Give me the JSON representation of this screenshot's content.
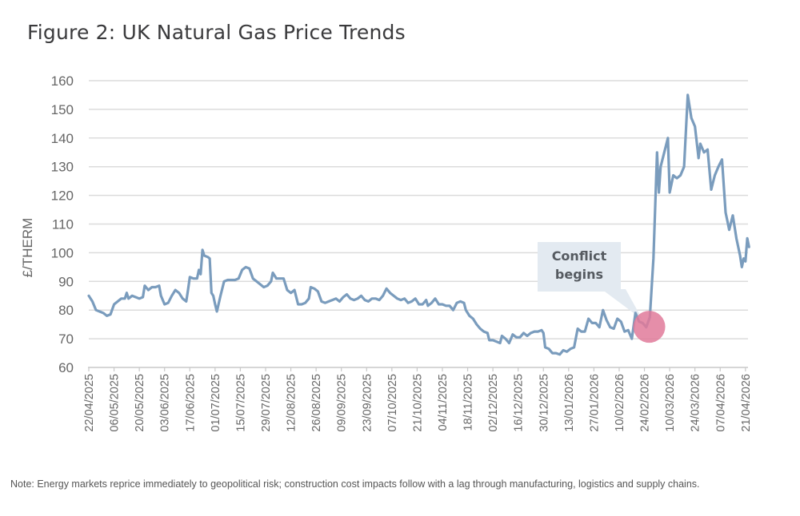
{
  "chart_data": {
    "type": "line",
    "title": "Figure 2: UK Natural Gas Price Trends",
    "xlabel": "",
    "ylabel": "£/THERM",
    "ylim": [
      60,
      160
    ],
    "yticks": [
      60,
      70,
      80,
      90,
      100,
      110,
      120,
      130,
      140,
      150,
      160
    ],
    "grid": true,
    "x_tick_labels": [
      "22/04/2025",
      "06/05/2025",
      "20/05/2025",
      "03/06/2025",
      "17/06/2025",
      "01/07/2025",
      "15/07/2025",
      "29/07/2025",
      "12/08/2025",
      "26/08/2025",
      "09/09/2025",
      "23/09/2025",
      "07/10/2025",
      "21/10/2025",
      "04/11/2025",
      "18/11/2025",
      "02/12/2025",
      "16/12/2025",
      "30/12/2025",
      "13/01/2026",
      "27/01/2026",
      "10/02/2026",
      "24/02/2026",
      "10/03/2026",
      "24/03/2026",
      "07/04/2026",
      "21/04/2026"
    ],
    "series": [
      {
        "name": "UK Natural Gas Price",
        "color": "#7a9cbd",
        "x_unit": "days since 22/04/2025",
        "points": [
          [
            0,
            85
          ],
          [
            2,
            83
          ],
          [
            4,
            80
          ],
          [
            6,
            79.5
          ],
          [
            8,
            79
          ],
          [
            10,
            78
          ],
          [
            12,
            78.5
          ],
          [
            14,
            82
          ],
          [
            16,
            83
          ],
          [
            18,
            84
          ],
          [
            20,
            84
          ],
          [
            21,
            86
          ],
          [
            22,
            84
          ],
          [
            24,
            85
          ],
          [
            26,
            84.5
          ],
          [
            28,
            84
          ],
          [
            30,
            84.5
          ],
          [
            31,
            88.5
          ],
          [
            33,
            87
          ],
          [
            35,
            88
          ],
          [
            37,
            88
          ],
          [
            39,
            88.5
          ],
          [
            40,
            85
          ],
          [
            42,
            82
          ],
          [
            44,
            82.5
          ],
          [
            46,
            85
          ],
          [
            48,
            87
          ],
          [
            50,
            86
          ],
          [
            52,
            84
          ],
          [
            54,
            83
          ],
          [
            55,
            87
          ],
          [
            56,
            91.5
          ],
          [
            58,
            91
          ],
          [
            60,
            91
          ],
          [
            61,
            94
          ],
          [
            62,
            92.5
          ],
          [
            63,
            101
          ],
          [
            64,
            99
          ],
          [
            66,
            98.5
          ],
          [
            67,
            98
          ],
          [
            68,
            86
          ],
          [
            69,
            85
          ],
          [
            70,
            82
          ],
          [
            71,
            79.5
          ],
          [
            73,
            85
          ],
          [
            75,
            90
          ],
          [
            77,
            90.5
          ],
          [
            79,
            90.5
          ],
          [
            81,
            90.5
          ],
          [
            83,
            91
          ],
          [
            85,
            94
          ],
          [
            87,
            95
          ],
          [
            89,
            94.5
          ],
          [
            91,
            91
          ],
          [
            93,
            90
          ],
          [
            95,
            89
          ],
          [
            97,
            88
          ],
          [
            99,
            88.5
          ],
          [
            101,
            90
          ],
          [
            102,
            93
          ],
          [
            104,
            91
          ],
          [
            106,
            91
          ],
          [
            108,
            91
          ],
          [
            110,
            87
          ],
          [
            112,
            86
          ],
          [
            114,
            87
          ],
          [
            116,
            82
          ],
          [
            118,
            82
          ],
          [
            120,
            82.5
          ],
          [
            122,
            84
          ],
          [
            123,
            88
          ],
          [
            125,
            87.5
          ],
          [
            127,
            86.5
          ],
          [
            129,
            83
          ],
          [
            131,
            82.5
          ],
          [
            133,
            83
          ],
          [
            135,
            83.5
          ],
          [
            137,
            84
          ],
          [
            139,
            83
          ],
          [
            141,
            84.5
          ],
          [
            143,
            85.5
          ],
          [
            145,
            84
          ],
          [
            147,
            83.5
          ],
          [
            149,
            84
          ],
          [
            151,
            85
          ],
          [
            153,
            83.5
          ],
          [
            155,
            83
          ],
          [
            157,
            84
          ],
          [
            159,
            84
          ],
          [
            161,
            83.5
          ],
          [
            163,
            85
          ],
          [
            165,
            87.5
          ],
          [
            167,
            86
          ],
          [
            169,
            85
          ],
          [
            171,
            84
          ],
          [
            173,
            83.5
          ],
          [
            175,
            84
          ],
          [
            177,
            82.5
          ],
          [
            179,
            83
          ],
          [
            181,
            84
          ],
          [
            183,
            82
          ],
          [
            185,
            82
          ],
          [
            187,
            83.5
          ],
          [
            188,
            81.5
          ],
          [
            190,
            82.5
          ],
          [
            192,
            84
          ],
          [
            194,
            82
          ],
          [
            196,
            82
          ],
          [
            198,
            81.5
          ],
          [
            200,
            81.5
          ],
          [
            202,
            80
          ],
          [
            204,
            82.5
          ],
          [
            206,
            83
          ],
          [
            208,
            82.5
          ],
          [
            209,
            80
          ],
          [
            211,
            78
          ],
          [
            213,
            77
          ],
          [
            215,
            75
          ],
          [
            217,
            73.5
          ],
          [
            219,
            72.5
          ],
          [
            221,
            72
          ],
          [
            222,
            69.5
          ],
          [
            224,
            69.5
          ],
          [
            226,
            69
          ],
          [
            228,
            68.5
          ],
          [
            229,
            71
          ],
          [
            231,
            70
          ],
          [
            233,
            68.5
          ],
          [
            235,
            71.5
          ],
          [
            237,
            70.5
          ],
          [
            239,
            70.5
          ],
          [
            241,
            72
          ],
          [
            243,
            71
          ],
          [
            245,
            72
          ],
          [
            247,
            72.5
          ],
          [
            249,
            72.5
          ],
          [
            251,
            73
          ],
          [
            252,
            72
          ],
          [
            253,
            67
          ],
          [
            255,
            66.5
          ],
          [
            257,
            65
          ],
          [
            259,
            65
          ],
          [
            261,
            64.5
          ],
          [
            263,
            66
          ],
          [
            265,
            65.5
          ],
          [
            267,
            66.5
          ],
          [
            269,
            67
          ],
          [
            271,
            73.5
          ],
          [
            273,
            72.5
          ],
          [
            275,
            72.5
          ],
          [
            277,
            77
          ],
          [
            279,
            75.5
          ],
          [
            281,
            75.5
          ],
          [
            283,
            74
          ],
          [
            285,
            80
          ],
          [
            287,
            76.5
          ],
          [
            289,
            74
          ],
          [
            291,
            73.5
          ],
          [
            293,
            77
          ],
          [
            295,
            76
          ],
          [
            297,
            72.5
          ],
          [
            299,
            73
          ],
          [
            301,
            70
          ],
          [
            303,
            79
          ],
          [
            305,
            76
          ],
          [
            307,
            75.5
          ],
          [
            309,
            74
          ],
          [
            311,
            77.5
          ],
          [
            313,
            98
          ],
          [
            315,
            135
          ],
          [
            316,
            121
          ],
          [
            317,
            130
          ],
          [
            319,
            135
          ],
          [
            321,
            140
          ],
          [
            322,
            121
          ],
          [
            324,
            127
          ],
          [
            326,
            126
          ],
          [
            328,
            127
          ],
          [
            330,
            130
          ],
          [
            332,
            155
          ],
          [
            334,
            147
          ],
          [
            336,
            144
          ],
          [
            338,
            133
          ],
          [
            339,
            138
          ],
          [
            341,
            135
          ],
          [
            343,
            136
          ],
          [
            345,
            122
          ],
          [
            347,
            127
          ],
          [
            349,
            130
          ],
          [
            351,
            132.5
          ],
          [
            353,
            114
          ],
          [
            354,
            111
          ],
          [
            355,
            108
          ],
          [
            357,
            113
          ],
          [
            359,
            105
          ],
          [
            361,
            99
          ],
          [
            362,
            95
          ],
          [
            363,
            98
          ],
          [
            364,
            97
          ],
          [
            365,
            105
          ],
          [
            366,
            102
          ]
        ]
      }
    ],
    "annotations": [
      {
        "text_line1": "Conflict",
        "text_line2": "begins",
        "at_x": 308,
        "at_y": 75,
        "marker_color": "#e07a9a"
      }
    ],
    "note": "Note: Energy markets reprice immediately to geopolitical risk; construction cost impacts follow with a lag through manufacturing, logistics and supply chains."
  }
}
